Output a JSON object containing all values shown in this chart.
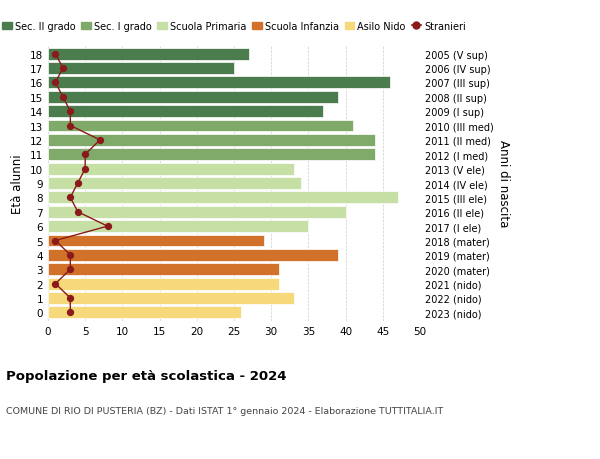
{
  "ages": [
    18,
    17,
    16,
    15,
    14,
    13,
    12,
    11,
    10,
    9,
    8,
    7,
    6,
    5,
    4,
    3,
    2,
    1,
    0
  ],
  "years": [
    "2005 (V sup)",
    "2006 (IV sup)",
    "2007 (III sup)",
    "2008 (II sup)",
    "2009 (I sup)",
    "2010 (III med)",
    "2011 (II med)",
    "2012 (I med)",
    "2013 (V ele)",
    "2014 (IV ele)",
    "2015 (III ele)",
    "2016 (II ele)",
    "2017 (I ele)",
    "2018 (mater)",
    "2019 (mater)",
    "2020 (mater)",
    "2021 (nido)",
    "2022 (nido)",
    "2023 (nido)"
  ],
  "bar_values": [
    27,
    25,
    46,
    39,
    37,
    41,
    44,
    44,
    33,
    34,
    47,
    40,
    35,
    29,
    39,
    31,
    31,
    33,
    26
  ],
  "bar_colors": [
    "#4a7c4e",
    "#4a7c4e",
    "#4a7c4e",
    "#4a7c4e",
    "#4a7c4e",
    "#7faa6a",
    "#7faa6a",
    "#7faa6a",
    "#c5dfa5",
    "#c5dfa5",
    "#c5dfa5",
    "#c5dfa5",
    "#c5dfa5",
    "#d2722a",
    "#d2722a",
    "#d2722a",
    "#f5d97a",
    "#f5d97a",
    "#f5d97a"
  ],
  "stranieri": [
    1,
    2,
    1,
    2,
    3,
    3,
    7,
    5,
    5,
    4,
    3,
    4,
    8,
    1,
    3,
    3,
    1,
    3,
    3
  ],
  "stranieri_color": "#8b1a1a",
  "title": "Popolazione per età scolastica - 2024",
  "subtitle": "COMUNE DI RIO DI PUSTERIA (BZ) - Dati ISTAT 1° gennaio 2024 - Elaborazione TUTTITALIA.IT",
  "ylabel_left": "Età alunni",
  "ylabel_right": "Anni di nascita",
  "xlim": [
    0,
    50
  ],
  "xticks": [
    0,
    5,
    10,
    15,
    20,
    25,
    30,
    35,
    40,
    45,
    50
  ],
  "legend_labels": [
    "Sec. II grado",
    "Sec. I grado",
    "Scuola Primaria",
    "Scuola Infanzia",
    "Asilo Nido",
    "Stranieri"
  ],
  "legend_colors": [
    "#4a7c4e",
    "#7faa6a",
    "#c5dfa5",
    "#d2722a",
    "#f5d97a",
    "#8b1a1a"
  ],
  "bg_color": "#ffffff",
  "grid_color": "#cccccc",
  "bar_height": 0.82
}
